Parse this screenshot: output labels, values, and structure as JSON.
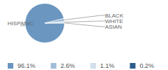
{
  "chart_data": {
    "type": "pie",
    "categories": [
      "HISPANIC",
      "BLACK",
      "WHITE",
      "ASIAN"
    ],
    "values": [
      96.1,
      2.6,
      1.1,
      0.2
    ],
    "value_labels": [
      "96.1%",
      "2.6%",
      "1.1%",
      "0.2%"
    ],
    "colors": [
      "#6a96c0",
      "#a1bcd8",
      "#d3dfec",
      "#2b5c8a"
    ],
    "legend": "bottom"
  }
}
